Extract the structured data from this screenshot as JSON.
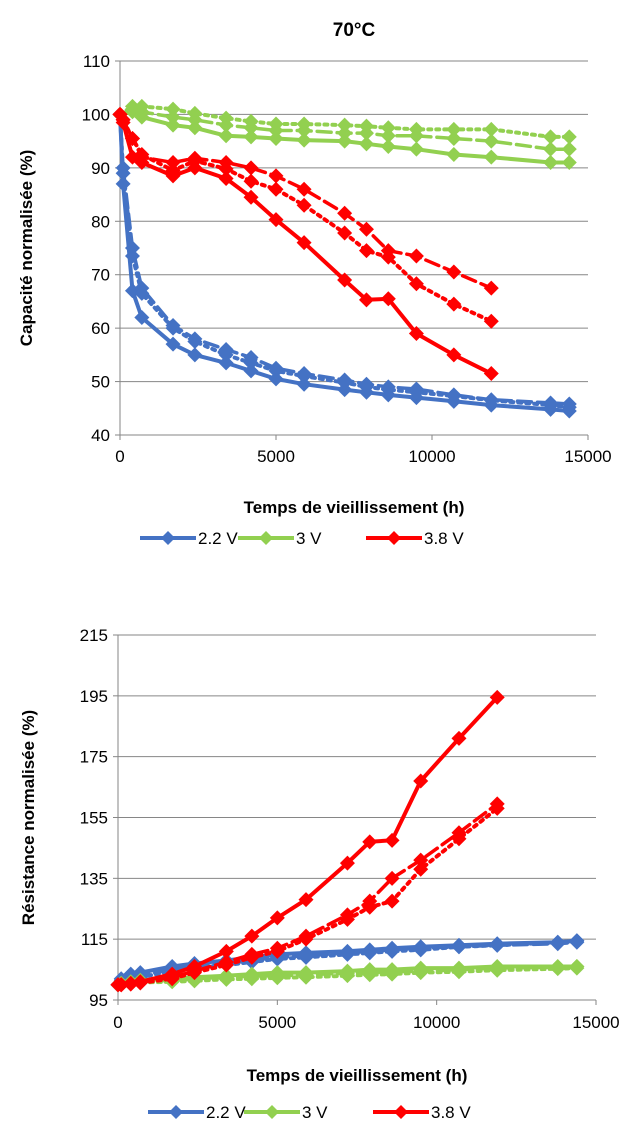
{
  "colors": {
    "2.2 V": "#4472c4",
    "3 V": "#92d050",
    "3.8 V": "#ff0000"
  },
  "chart_data": [
    {
      "type": "line",
      "title": "70°C",
      "xlabel": "Temps de vieillissement (h)",
      "ylabel": "Capacité normalisée (%)",
      "xlim": [
        0,
        15000
      ],
      "ylim": [
        40,
        110
      ],
      "xticks": [
        "0",
        "5000",
        "10000",
        "15000"
      ],
      "yticks": [
        "40",
        "50",
        "60",
        "70",
        "80",
        "90",
        "100",
        "110"
      ],
      "grid": "horizontal",
      "legend": {
        "position": "bottom",
        "entries": [
          "2.2 V",
          "3 V",
          "3.8 V"
        ]
      },
      "series": [
        {
          "name": "2.2 V",
          "style": "solid",
          "x": [
            0,
            100,
            400,
            700,
            1700,
            2400,
            3400,
            4200,
            5000,
            5900,
            7200,
            7900,
            8600,
            9500,
            10700,
            11900,
            13800,
            14400
          ],
          "y": [
            100,
            87,
            67,
            62,
            57,
            55,
            53.5,
            52,
            50.5,
            49.5,
            48.5,
            48,
            47.5,
            47,
            46.3,
            45.6,
            44.8,
            44.5
          ]
        },
        {
          "name": "2.2 V",
          "style": "dash",
          "x": [
            0,
            100,
            400,
            700,
            1700,
            2400,
            3400,
            4200,
            5000,
            5900,
            7200,
            7900,
            8600,
            9500,
            10700,
            11900,
            13800,
            14400
          ],
          "y": [
            100,
            90,
            75,
            67.5,
            60.5,
            58,
            56,
            54.5,
            52.5,
            51.5,
            50.3,
            49.5,
            49,
            48.6,
            47.5,
            46.6,
            46,
            45.8
          ]
        },
        {
          "name": "2.2 V",
          "style": "dot",
          "x": [
            0,
            100,
            400,
            700,
            1700,
            2400,
            3400,
            4200,
            5000,
            5900,
            7200,
            7900,
            8600,
            9500,
            10700,
            11900,
            13800,
            14400
          ],
          "y": [
            100,
            89,
            73.5,
            66.5,
            60,
            57.5,
            55,
            53.5,
            52,
            51,
            49.8,
            49,
            48.5,
            48,
            47.3,
            46.5,
            45.6,
            45.2
          ]
        },
        {
          "name": "3 V",
          "style": "solid",
          "x": [
            0,
            400,
            700,
            1700,
            2400,
            3400,
            4200,
            5000,
            5900,
            7200,
            7900,
            8600,
            9500,
            10700,
            11900,
            13800,
            14400
          ],
          "y": [
            100,
            100.5,
            99.5,
            98,
            97.5,
            96,
            95.8,
            95.5,
            95.2,
            95,
            94.5,
            94,
            93.5,
            92.5,
            92,
            91,
            91
          ]
        },
        {
          "name": "3 V",
          "style": "dash",
          "x": [
            0,
            400,
            700,
            1700,
            2400,
            3400,
            4200,
            5000,
            5900,
            7200,
            7900,
            8600,
            9500,
            10700,
            11900,
            13800,
            14400
          ],
          "y": [
            100,
            101,
            100.5,
            99.5,
            99,
            98,
            97.5,
            97,
            97,
            96.5,
            96.5,
            96,
            96,
            95.5,
            95,
            93.5,
            93.5
          ]
        },
        {
          "name": "3 V",
          "style": "dot",
          "x": [
            0,
            400,
            700,
            1700,
            2400,
            3400,
            4200,
            5000,
            5900,
            7200,
            7900,
            8600,
            9500,
            10700,
            11900,
            13800,
            14400
          ],
          "y": [
            100,
            101.5,
            101.5,
            101,
            100.2,
            99.3,
            98.7,
            98.2,
            98.2,
            98,
            97.8,
            97.5,
            97.2,
            97.2,
            97.2,
            95.8,
            95.8
          ]
        },
        {
          "name": "3.8 V",
          "style": "solid",
          "x": [
            0,
            100,
            400,
            700,
            1700,
            2400,
            3400,
            4200,
            5000,
            5900,
            7200,
            7900,
            8600,
            9500,
            10700,
            11900
          ],
          "y": [
            100,
            98.5,
            92,
            91,
            88.5,
            90,
            88,
            84.5,
            80.3,
            76,
            69,
            65.3,
            65.5,
            59,
            55,
            51.5
          ]
        },
        {
          "name": "3.8 V",
          "style": "dash",
          "x": [
            0,
            100,
            400,
            700,
            1700,
            2400,
            3400,
            4200,
            5000,
            5900,
            7200,
            7900,
            8600,
            9500,
            10700,
            11900
          ],
          "y": [
            100,
            99,
            95.5,
            92,
            91,
            91.8,
            91,
            90,
            88.5,
            86,
            81.5,
            78.5,
            74.5,
            73.5,
            70.5,
            67.5
          ]
        },
        {
          "name": "3.8 V",
          "style": "dot",
          "x": [
            0,
            100,
            400,
            700,
            1700,
            2400,
            3400,
            4200,
            5000,
            5900,
            7200,
            7900,
            8600,
            9500,
            10700,
            11900
          ],
          "y": [
            100,
            99,
            95.5,
            92.5,
            89.5,
            91.3,
            89.8,
            87.5,
            86,
            83,
            77.8,
            74.5,
            73.3,
            68.3,
            64.5,
            61.3
          ]
        }
      ]
    },
    {
      "type": "line",
      "title": "",
      "xlabel": "Temps de vieillissement (h)",
      "ylabel": "Résistance normalisée (%)",
      "xlim": [
        0,
        15000
      ],
      "ylim": [
        95,
        215
      ],
      "xticks": [
        "0",
        "5000",
        "10000",
        "15000"
      ],
      "yticks": [
        "95",
        "115",
        "135",
        "155",
        "175",
        "195",
        "215"
      ],
      "grid": "horizontal",
      "legend": {
        "position": "bottom",
        "entries": [
          "2.2 V",
          "3 V",
          "3.8 V"
        ]
      },
      "series": [
        {
          "name": "2.2 V",
          "style": "solid",
          "x": [
            0,
            100,
            400,
            700,
            1700,
            2400,
            3400,
            4200,
            5000,
            5900,
            7200,
            7900,
            8600,
            9500,
            10700,
            11900,
            13800,
            14400
          ],
          "y": [
            100,
            102,
            103.5,
            104,
            106,
            107,
            108,
            109,
            110,
            110.5,
            111,
            111.5,
            112,
            112.5,
            113,
            113.5,
            114,
            114.5
          ]
        },
        {
          "name": "2.2 V",
          "style": "dash",
          "x": [
            0,
            100,
            400,
            700,
            1700,
            2400,
            3400,
            4200,
            5000,
            5900,
            7200,
            7900,
            8600,
            9500,
            10700,
            11900,
            13800,
            14400
          ],
          "y": [
            100,
            101.5,
            102.5,
            103,
            105,
            106,
            107,
            108,
            109,
            109.5,
            110.5,
            111,
            111.5,
            112,
            112.5,
            113,
            113.5,
            114
          ]
        },
        {
          "name": "2.2 V",
          "style": "dot",
          "x": [
            0,
            100,
            400,
            700,
            1700,
            2400,
            3400,
            4200,
            5000,
            5900,
            7200,
            7900,
            8600,
            9500,
            10700,
            11900,
            13800,
            14400
          ],
          "y": [
            100,
            101,
            102,
            102.5,
            104.5,
            105.5,
            106.5,
            107.5,
            108.5,
            109,
            110,
            110.5,
            111,
            111.5,
            112.5,
            113,
            114,
            114.5
          ]
        },
        {
          "name": "3 V",
          "style": "solid",
          "x": [
            0,
            100,
            400,
            700,
            1700,
            2400,
            3400,
            4200,
            5000,
            5900,
            7200,
            7900,
            8600,
            9500,
            10700,
            11900,
            13800,
            14400
          ],
          "y": [
            100,
            100.5,
            101,
            101.5,
            102,
            102.5,
            103,
            103.5,
            104,
            104,
            104.5,
            105,
            105,
            105.5,
            105.5,
            106,
            106,
            106
          ]
        },
        {
          "name": "3 V",
          "style": "dash",
          "x": [
            0,
            100,
            400,
            700,
            1700,
            2400,
            3400,
            4200,
            5000,
            5900,
            7200,
            7900,
            8600,
            9500,
            10700,
            11900,
            13800,
            14400
          ],
          "y": [
            100,
            100.3,
            100.8,
            101,
            101.5,
            102,
            102.5,
            102.8,
            103,
            103.3,
            103.8,
            104,
            104.3,
            104.5,
            105,
            105.5,
            105.8,
            106
          ]
        },
        {
          "name": "3 V",
          "style": "dot",
          "x": [
            0,
            100,
            400,
            700,
            1700,
            2400,
            3400,
            4200,
            5000,
            5900,
            7200,
            7900,
            8600,
            9500,
            10700,
            11900,
            13800,
            14400
          ],
          "y": [
            100,
            100.2,
            100.5,
            100.8,
            101,
            101.3,
            101.8,
            102,
            102.3,
            102.5,
            103,
            103.3,
            103.5,
            104,
            104.3,
            104.8,
            105.3,
            105.5
          ]
        },
        {
          "name": "3.8 V",
          "style": "solid",
          "x": [
            0,
            100,
            400,
            700,
            1700,
            2400,
            3400,
            4200,
            5000,
            5900,
            7200,
            7900,
            8600,
            9500,
            10700,
            11900
          ],
          "y": [
            100,
            100,
            100.5,
            101,
            103.5,
            106,
            111,
            116,
            122,
            128,
            140,
            147,
            147.5,
            167,
            181,
            194.5
          ]
        },
        {
          "name": "3.8 V",
          "style": "dash",
          "x": [
            0,
            100,
            400,
            700,
            1700,
            2400,
            3400,
            4200,
            5000,
            5900,
            7200,
            7900,
            8600,
            9500,
            10700,
            11900
          ],
          "y": [
            100,
            100,
            100.3,
            100.8,
            102.5,
            104.5,
            107.5,
            110,
            112,
            116,
            123,
            127.5,
            135,
            141,
            150,
            159.5
          ]
        },
        {
          "name": "3.8 V",
          "style": "dot",
          "x": [
            0,
            100,
            400,
            700,
            1700,
            2400,
            3400,
            4200,
            5000,
            5900,
            7200,
            7900,
            8600,
            9500,
            10700,
            11900
          ],
          "y": [
            100,
            100,
            100.2,
            100.6,
            102,
            104,
            106.5,
            109,
            111,
            115,
            121.5,
            125.5,
            127.5,
            138,
            148,
            158
          ]
        }
      ]
    }
  ]
}
